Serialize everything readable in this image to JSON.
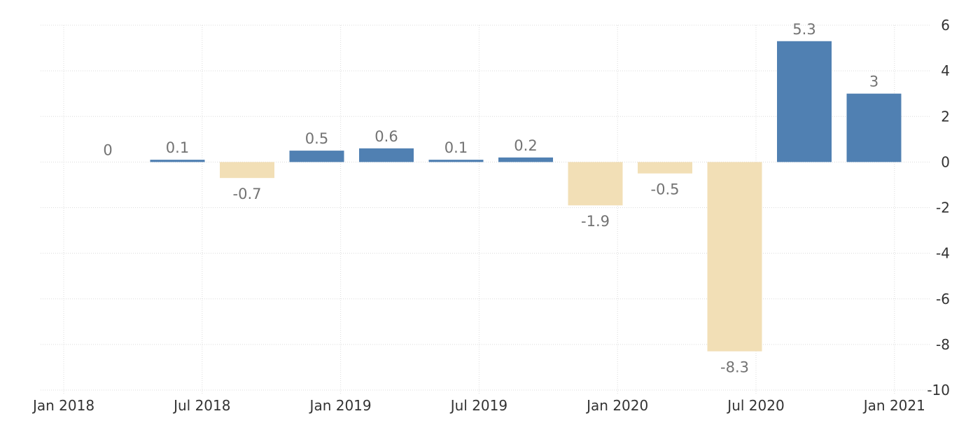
{
  "chart_data": {
    "type": "bar",
    "title": "",
    "xlabel": "",
    "ylabel": "",
    "x_tick_labels": [
      "Jan 2018",
      "Jul 2018",
      "Jan 2019",
      "Jul 2019",
      "Jan 2020",
      "Jul 2020",
      "Jan 2021"
    ],
    "y_tick_labels": [
      "6",
      "4",
      "2",
      "0",
      "-2",
      "-4",
      "-6",
      "-8",
      "-10"
    ],
    "y_ticks": [
      6,
      4,
      2,
      0,
      -2,
      -4,
      -6,
      -8,
      -10
    ],
    "ylim": [
      -10,
      6
    ],
    "grid": true,
    "y_axis_side": "right",
    "categories": [
      "2018-01",
      "2018-04",
      "2018-07",
      "2018-10",
      "2019-01",
      "2019-04",
      "2019-07",
      "2019-10",
      "2020-01",
      "2020-04",
      "2020-07",
      "2020-10"
    ],
    "values": [
      0,
      0.1,
      -0.7,
      0.5,
      0.6,
      0.1,
      0.2,
      -1.9,
      -0.5,
      -8.3,
      5.3,
      3
    ],
    "data_labels": [
      "0",
      "0.1",
      "-0.7",
      "0.5",
      "0.6",
      "0.1",
      "0.2",
      "-1.9",
      "-0.5",
      "-8.3",
      "5.3",
      "3"
    ],
    "colors": {
      "positive": "#5080b2",
      "negative": "#f2dfb6",
      "label": "#737373",
      "tick": "#333333",
      "grid": "#dcdcdc"
    }
  }
}
